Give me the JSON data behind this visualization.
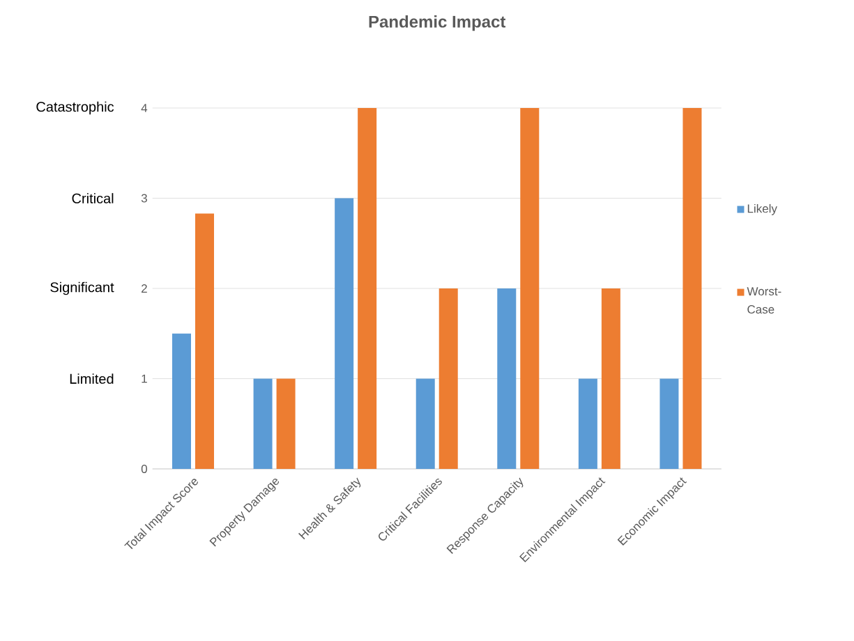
{
  "chart_data": {
    "type": "bar",
    "title": "Pandemic Impact",
    "categories": [
      "Total Impact Score",
      "Property Damage",
      "Health & Safety",
      "Critical Facilities",
      "Response Capacity",
      "Environmental Impact",
      "Economic Impact"
    ],
    "series": [
      {
        "name": "Likely",
        "color": "#5b9bd5",
        "values": [
          1.5,
          1,
          3,
          1,
          2,
          1,
          1
        ]
      },
      {
        "name": "Worst-Case",
        "color": "#ed7d31",
        "values": [
          2.83,
          1,
          4,
          2,
          4,
          2,
          4
        ]
      }
    ],
    "ylim": [
      0,
      4
    ],
    "yticks": [
      0,
      1,
      2,
      3,
      4
    ],
    "grid": "y",
    "legend": "right",
    "annotations": [
      "Catastrophic",
      "Critical",
      "Significant",
      "Limited"
    ]
  }
}
